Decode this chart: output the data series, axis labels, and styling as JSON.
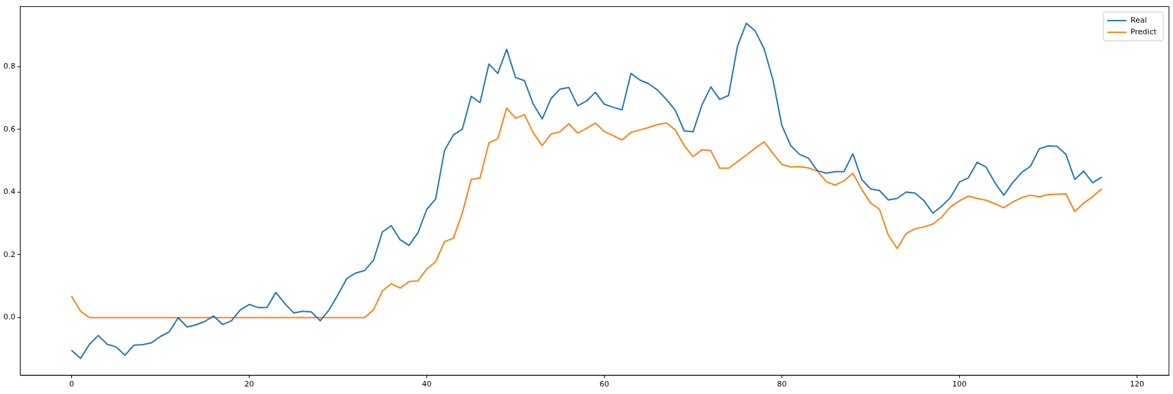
{
  "chart_data": {
    "type": "line",
    "x": [
      0,
      1,
      2,
      3,
      4,
      5,
      6,
      7,
      8,
      9,
      10,
      11,
      12,
      13,
      14,
      15,
      16,
      17,
      18,
      19,
      20,
      21,
      22,
      23,
      24,
      25,
      26,
      27,
      28,
      29,
      30,
      31,
      32,
      33,
      34,
      35,
      36,
      37,
      38,
      39,
      40,
      41,
      42,
      43,
      44,
      45,
      46,
      47,
      48,
      49,
      50,
      51,
      52,
      53,
      54,
      55,
      56,
      57,
      58,
      59,
      60,
      61,
      62,
      63,
      64,
      65,
      66,
      67,
      68,
      69,
      70,
      71,
      72,
      73,
      74,
      75,
      76,
      77,
      78,
      79,
      80,
      81,
      82,
      83,
      84,
      85,
      86,
      87,
      88,
      89,
      90,
      91,
      92,
      93,
      94,
      95,
      96,
      97,
      98,
      99,
      100,
      101,
      102,
      103,
      104,
      105,
      106,
      107,
      108,
      109,
      110,
      111,
      112,
      113,
      114,
      115,
      116
    ],
    "series": [
      {
        "name": "Real",
        "color": "#1f77b4",
        "values": [
          -0.105,
          -0.13,
          -0.085,
          -0.057,
          -0.085,
          -0.093,
          -0.12,
          -0.088,
          -0.086,
          -0.08,
          -0.06,
          -0.045,
          0.0,
          -0.03,
          -0.023,
          -0.012,
          0.005,
          -0.022,
          -0.01,
          0.025,
          0.042,
          0.032,
          0.032,
          0.08,
          0.045,
          0.015,
          0.02,
          0.018,
          -0.01,
          0.025,
          0.073,
          0.125,
          0.142,
          0.15,
          0.183,
          0.273,
          0.293,
          0.248,
          0.23,
          0.27,
          0.345,
          0.378,
          0.533,
          0.582,
          0.6,
          0.705,
          0.685,
          0.808,
          0.778,
          0.855,
          0.765,
          0.755,
          0.68,
          0.633,
          0.698,
          0.728,
          0.733,
          0.675,
          0.69,
          0.718,
          0.68,
          0.67,
          0.662,
          0.778,
          0.757,
          0.745,
          0.725,
          0.695,
          0.66,
          0.595,
          0.592,
          0.678,
          0.735,
          0.695,
          0.708,
          0.865,
          0.938,
          0.913,
          0.857,
          0.757,
          0.612,
          0.548,
          0.52,
          0.508,
          0.468,
          0.46,
          0.465,
          0.465,
          0.522,
          0.44,
          0.41,
          0.405,
          0.375,
          0.38,
          0.4,
          0.397,
          0.373,
          0.333,
          0.355,
          0.383,
          0.432,
          0.445,
          0.495,
          0.48,
          0.43,
          0.39,
          0.43,
          0.462,
          0.482,
          0.538,
          0.547,
          0.546,
          0.52,
          0.44,
          0.467,
          0.43,
          0.447
        ]
      },
      {
        "name": "Predict",
        "color": "#ff7f0e",
        "values": [
          0.067,
          0.02,
          0.0,
          0.0,
          0.0,
          0.0,
          0.0,
          0.0,
          0.0,
          0.0,
          0.0,
          0.0,
          0.0,
          0.0,
          0.0,
          0.0,
          0.0,
          0.0,
          0.0,
          0.0,
          0.0,
          0.0,
          0.0,
          0.0,
          0.0,
          0.0,
          0.0,
          0.0,
          0.0,
          0.0,
          0.0,
          0.0,
          0.0,
          0.0,
          0.025,
          0.085,
          0.108,
          0.094,
          0.115,
          0.117,
          0.155,
          0.178,
          0.242,
          0.253,
          0.333,
          0.44,
          0.445,
          0.557,
          0.57,
          0.668,
          0.635,
          0.647,
          0.588,
          0.548,
          0.585,
          0.592,
          0.618,
          0.588,
          0.603,
          0.62,
          0.593,
          0.58,
          0.566,
          0.59,
          0.598,
          0.606,
          0.615,
          0.62,
          0.598,
          0.548,
          0.513,
          0.535,
          0.532,
          0.476,
          0.476,
          0.497,
          0.518,
          0.54,
          0.56,
          0.523,
          0.488,
          0.48,
          0.481,
          0.477,
          0.467,
          0.433,
          0.422,
          0.436,
          0.46,
          0.408,
          0.365,
          0.345,
          0.262,
          0.22,
          0.268,
          0.283,
          0.289,
          0.298,
          0.32,
          0.353,
          0.372,
          0.387,
          0.38,
          0.374,
          0.363,
          0.35,
          0.368,
          0.382,
          0.39,
          0.385,
          0.392,
          0.393,
          0.394,
          0.338,
          0.365,
          0.385,
          0.41
        ]
      }
    ],
    "xlim": [
      -5.8,
      123.6
    ],
    "ylim": [
      -0.184,
      0.991
    ],
    "xticks": [
      0,
      20,
      40,
      60,
      80,
      100,
      120
    ],
    "yticks": [
      {
        "value": 0,
        "label": "0.0"
      },
      0.2,
      0.4,
      0.6,
      0.8
    ],
    "legend": "top right",
    "grid": false,
    "marker": "none",
    "line_style": "solid"
  }
}
